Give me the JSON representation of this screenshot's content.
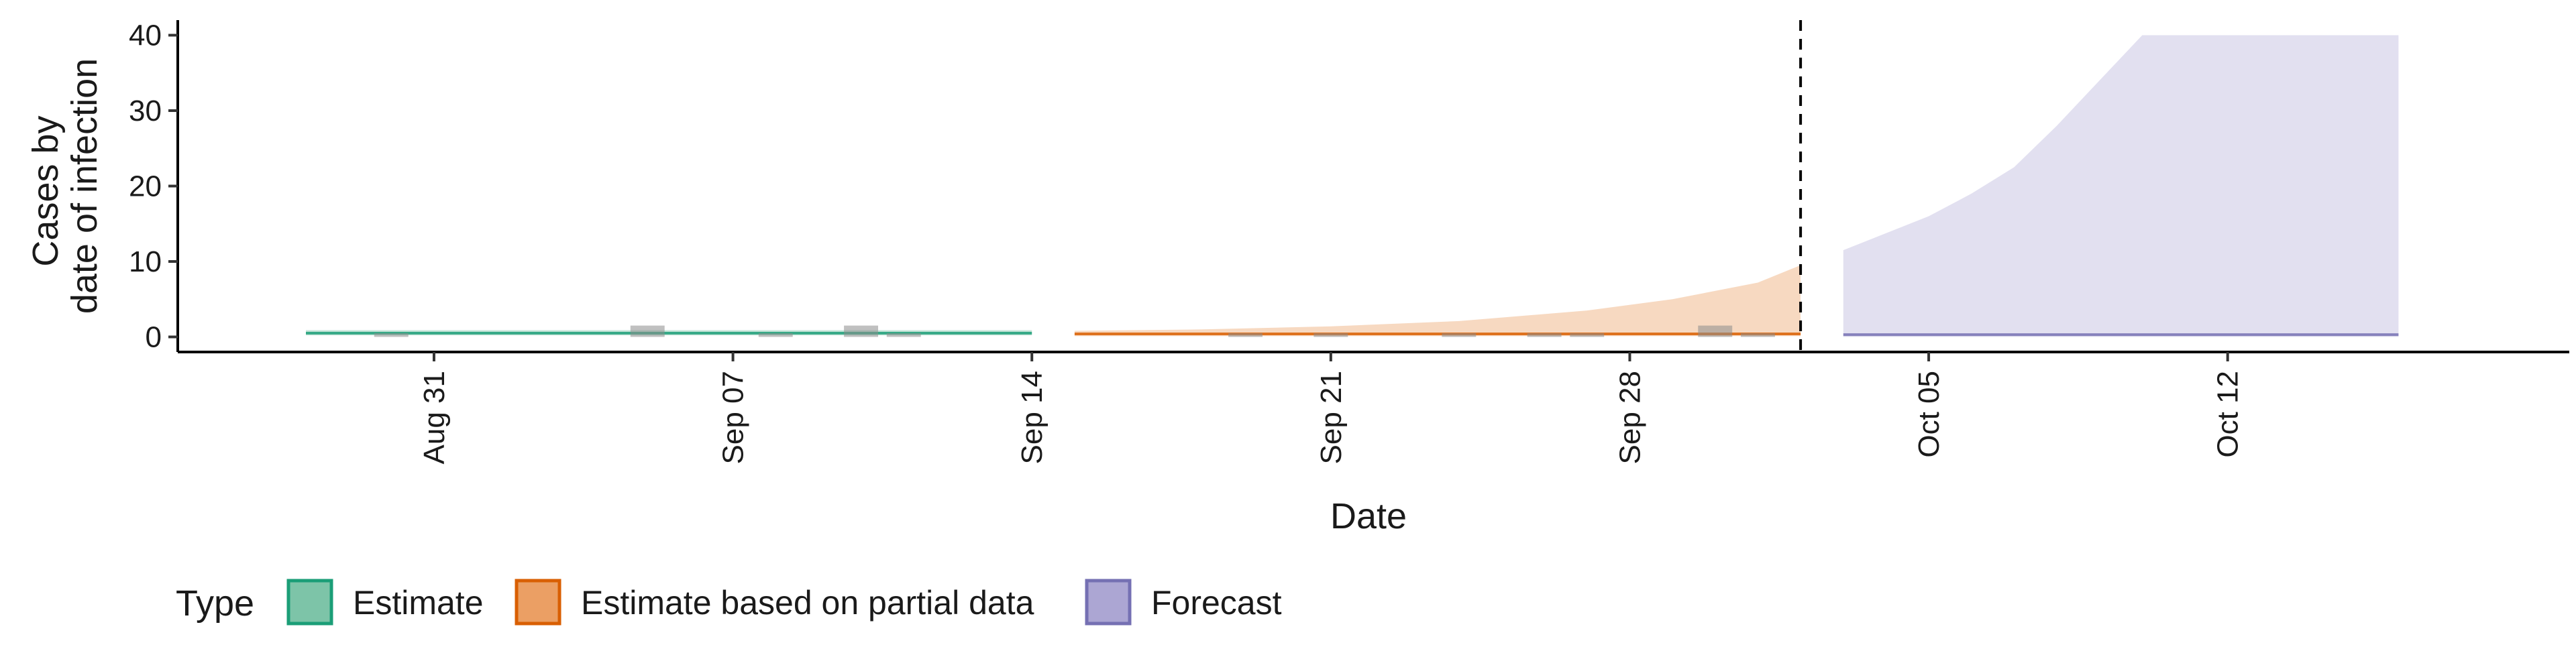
{
  "chart_data": {
    "type": "area",
    "title": "",
    "xlabel": "Date",
    "ylabel_lines": [
      "Cases by",
      "date of infection"
    ],
    "x_range": [
      "2020-08-25",
      "2020-10-20"
    ],
    "ylim": [
      -2,
      42
    ],
    "y_ticks": [
      0,
      10,
      20,
      30,
      40
    ],
    "x_ticks": [
      {
        "date": "2020-08-31",
        "label": "Aug 31"
      },
      {
        "date": "2020-09-07",
        "label": "Sep 07"
      },
      {
        "date": "2020-09-14",
        "label": "Sep 14"
      },
      {
        "date": "2020-09-21",
        "label": "Sep 21"
      },
      {
        "date": "2020-09-28",
        "label": "Sep 28"
      },
      {
        "date": "2020-10-05",
        "label": "Oct 05"
      },
      {
        "date": "2020-10-12",
        "label": "Oct 12"
      }
    ],
    "grid": false,
    "legend_position": "bottom-left",
    "cutoff_date": "2020-10-02",
    "observed_cases": [
      {
        "date": "2020-08-30",
        "value": 0.5
      },
      {
        "date": "2020-09-05",
        "value": 1.5
      },
      {
        "date": "2020-09-08",
        "value": 0.5
      },
      {
        "date": "2020-09-10",
        "value": 1.5
      },
      {
        "date": "2020-09-11",
        "value": 0.5
      },
      {
        "date": "2020-09-19",
        "value": 0.5
      },
      {
        "date": "2020-09-21",
        "value": 0.5
      },
      {
        "date": "2020-09-24",
        "value": 0.5
      },
      {
        "date": "2020-09-26",
        "value": 0.5
      },
      {
        "date": "2020-09-27",
        "value": 0.5
      },
      {
        "date": "2020-09-30",
        "value": 1.5
      },
      {
        "date": "2020-10-01",
        "value": 0.5
      }
    ],
    "legend": {
      "title": "Type",
      "entries": [
        {
          "label": "Estimate",
          "fill": "#7dc4a8",
          "stroke": "#1b9e77"
        },
        {
          "label": "Estimate based on partial data",
          "fill": "#eb9f64",
          "stroke": "#d95f02"
        },
        {
          "label": "Forecast",
          "fill": "#aca6d3",
          "stroke": "#7570b3"
        }
      ]
    },
    "series": [
      {
        "name": "Estimate",
        "fill": "#7dc4a8",
        "stroke": "#1b9e77",
        "points": [
          {
            "date": "2020-08-28",
            "lower": 0.2,
            "upper": 0.9,
            "median": 0.5
          },
          {
            "date": "2020-09-14",
            "lower": 0.2,
            "upper": 0.9,
            "median": 0.5
          }
        ]
      },
      {
        "name": "Estimate based on partial data",
        "fill": "#eb9f64",
        "stroke": "#d95f02",
        "points": [
          {
            "date": "2020-09-15",
            "lower": 0.1,
            "upper": 0.8,
            "median": 0.4
          },
          {
            "date": "2020-09-18",
            "lower": 0.1,
            "upper": 1.0,
            "median": 0.4
          },
          {
            "date": "2020-09-21",
            "lower": 0.1,
            "upper": 1.4,
            "median": 0.4
          },
          {
            "date": "2020-09-24",
            "lower": 0.1,
            "upper": 2.1,
            "median": 0.4
          },
          {
            "date": "2020-09-27",
            "lower": 0.1,
            "upper": 3.5,
            "median": 0.4
          },
          {
            "date": "2020-09-29",
            "lower": 0.1,
            "upper": 5.0,
            "median": 0.4
          },
          {
            "date": "2020-10-01",
            "lower": 0.1,
            "upper": 7.2,
            "median": 0.4
          },
          {
            "date": "2020-10-02",
            "lower": 0.1,
            "upper": 9.5,
            "median": 0.4
          }
        ]
      },
      {
        "name": "Forecast",
        "fill": "#aca6d3",
        "stroke": "#7570b3",
        "points": [
          {
            "date": "2020-10-03",
            "lower": 0.0,
            "upper": 11.5,
            "median": 0.3
          },
          {
            "date": "2020-10-05",
            "lower": 0.0,
            "upper": 16.0,
            "median": 0.3
          },
          {
            "date": "2020-10-06",
            "lower": 0.0,
            "upper": 19.0,
            "median": 0.3
          },
          {
            "date": "2020-10-07",
            "lower": 0.0,
            "upper": 22.5,
            "median": 0.3
          },
          {
            "date": "2020-10-08",
            "lower": 0.0,
            "upper": 28.0,
            "median": 0.3
          },
          {
            "date": "2020-10-09",
            "lower": 0.0,
            "upper": 34.0,
            "median": 0.3
          },
          {
            "date": "2020-10-10",
            "lower": 0.0,
            "upper": 40.0,
            "median": 0.3
          },
          {
            "date": "2020-10-16",
            "lower": 0.0,
            "upper": 40.0,
            "median": 0.3
          }
        ]
      }
    ]
  }
}
